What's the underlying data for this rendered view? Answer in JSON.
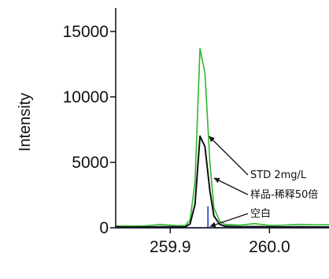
{
  "chart_data": {
    "type": "line",
    "title": "",
    "xlabel": "",
    "ylabel": "Intensity",
    "xlim": [
      259.845,
      260.06
    ],
    "ylim": [
      0,
      16800
    ],
    "xticks": [
      {
        "value": 259.9,
        "label": "259.9"
      },
      {
        "value": 260.0,
        "label": "260.0"
      }
    ],
    "yticks": [
      {
        "value": 0,
        "label": "0"
      },
      {
        "value": 5000,
        "label": "5000"
      },
      {
        "value": 10000,
        "label": "10000"
      },
      {
        "value": 15000,
        "label": "15000"
      }
    ],
    "grid": false,
    "legend": "none",
    "series": [
      {
        "name": "STD 2mg/L",
        "color": "#2db82d",
        "x": [
          259.845,
          259.86,
          259.875,
          259.89,
          259.905,
          259.915,
          259.92,
          259.925,
          259.93,
          259.935,
          259.94,
          259.944,
          259.95,
          259.955,
          259.97,
          259.985,
          260.0,
          260.015,
          260.03,
          260.045,
          260.06
        ],
        "y": [
          150,
          130,
          150,
          250,
          170,
          160,
          600,
          3500,
          13700,
          11800,
          5000,
          1500,
          500,
          260,
          200,
          320,
          180,
          200,
          260,
          220,
          230
        ]
      },
      {
        "name": "样品-稀释50倍",
        "color": "#111111",
        "x": [
          259.845,
          259.86,
          259.875,
          259.89,
          259.905,
          259.915,
          259.92,
          259.925,
          259.93,
          259.935,
          259.94,
          259.944,
          259.95,
          259.955,
          259.97,
          259.985,
          260.0,
          260.015,
          260.03,
          260.045,
          260.06
        ],
        "y": [
          60,
          50,
          60,
          80,
          70,
          60,
          300,
          1800,
          7000,
          6200,
          2800,
          900,
          250,
          120,
          80,
          90,
          70,
          60,
          70,
          60,
          60
        ]
      },
      {
        "name": "空白",
        "color": "#1f3fd6",
        "x": [
          259.845,
          259.938,
          259.938,
          259.938,
          260.06
        ],
        "y": [
          0,
          0,
          1600,
          0,
          0
        ]
      }
    ],
    "annotations": [
      {
        "text": "STD 2mg/L",
        "series": "STD 2mg/L",
        "target": [
          259.939,
          7000
        ]
      },
      {
        "text": "样品-稀释50倍",
        "series": "样品-稀释50倍",
        "target": [
          259.944,
          3800
        ]
      },
      {
        "text": "空白",
        "series": "空白",
        "target": [
          259.94,
          100
        ]
      }
    ]
  }
}
